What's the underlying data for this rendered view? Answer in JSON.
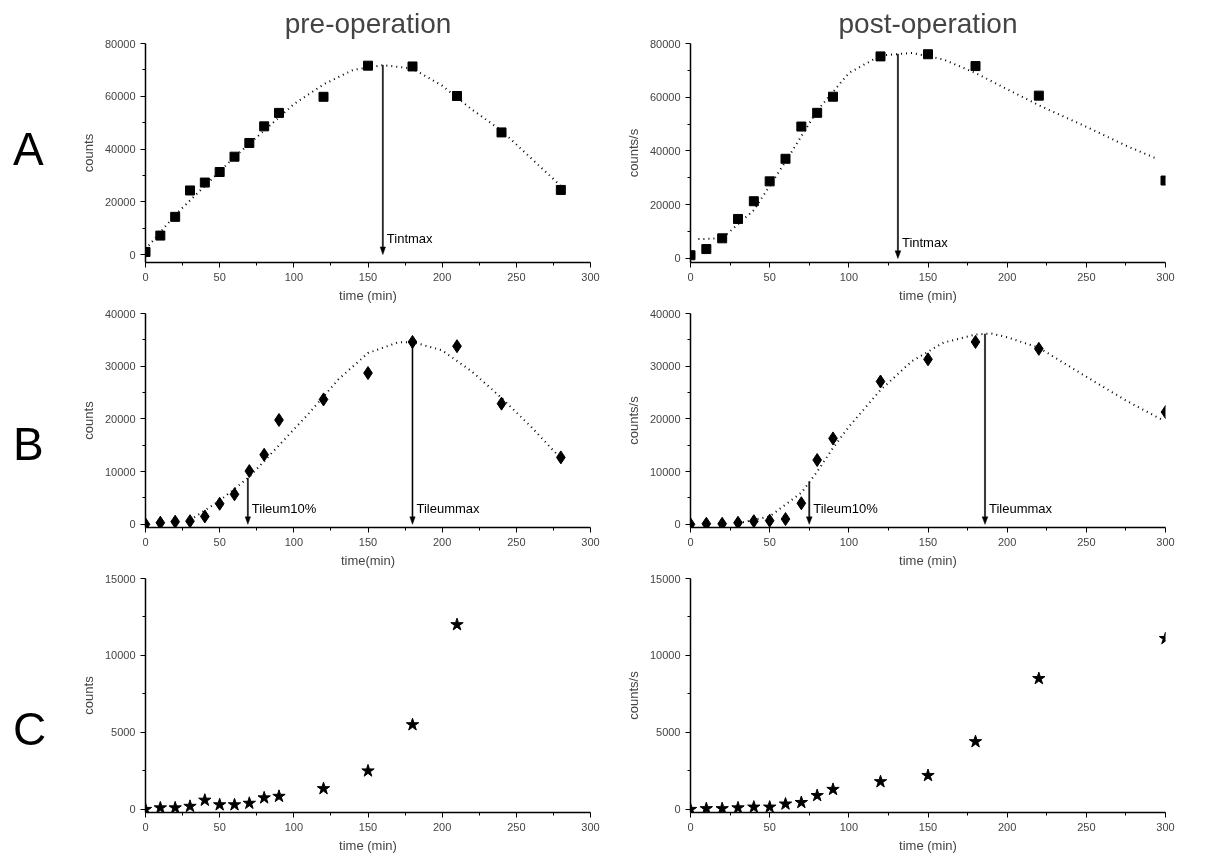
{
  "chart_data": [
    {
      "type": "scatter",
      "title": "pre-operation",
      "xlabel": "time (min)",
      "ylabel": "counts",
      "xlim": [
        0,
        300
      ],
      "ylim": [
        -3000,
        80000
      ],
      "xticks": [
        0,
        50,
        100,
        150,
        200,
        250,
        300
      ],
      "yticks": [
        0,
        20000,
        40000,
        60000,
        80000
      ],
      "annotations": [
        "A"
      ],
      "ref_lines": [
        {
          "axis": "x",
          "value": 160,
          "label": "Tintmax"
        }
      ],
      "series": [
        {
          "marker": "square",
          "color": "#000000",
          "x": [
            0,
            10,
            20,
            30,
            40,
            50,
            60,
            70,
            80,
            90,
            120,
            150,
            180,
            210,
            240,
            280
          ],
          "values": [
            1000,
            7200,
            14300,
            24300,
            27300,
            31300,
            37100,
            42300,
            48600,
            53700,
            59800,
            71600,
            71300,
            60100,
            46300,
            24500
          ]
        },
        {
          "type": "line",
          "line_style": "dotted",
          "color": "#000000",
          "x": [
            0,
            20,
            40,
            60,
            80,
            100,
            120,
            140,
            160,
            180,
            200,
            220,
            240,
            260,
            280
          ],
          "values": [
            2000,
            15000,
            26000,
            37000,
            47000,
            57000,
            64500,
            70000,
            71800,
            70500,
            64000,
            55000,
            47000,
            36500,
            26000
          ]
        }
      ]
    },
    {
      "type": "scatter",
      "title": "post-operation",
      "xlabel": "time (min)",
      "ylabel": "counts/s",
      "xlim": [
        0,
        300
      ],
      "ylim": [
        -1500,
        80000
      ],
      "xticks": [
        0,
        50,
        100,
        150,
        200,
        250,
        300
      ],
      "yticks": [
        0,
        20000,
        40000,
        60000,
        80000
      ],
      "ref_lines": [
        {
          "axis": "x",
          "value": 131,
          "label": "Tintmax"
        }
      ],
      "series": [
        {
          "marker": "square",
          "color": "#000000",
          "x": [
            0,
            10,
            20,
            30,
            40,
            50,
            60,
            70,
            80,
            90,
            120,
            150,
            180,
            220,
            300
          ],
          "values": [
            1200,
            3500,
            7500,
            14700,
            21300,
            28700,
            37100,
            49100,
            54200,
            60200,
            75200,
            76000,
            71600,
            60600,
            29000
          ]
        },
        {
          "type": "line",
          "line_style": "dotted",
          "color": "#000000",
          "x": [
            5,
            20,
            40,
            60,
            80,
            100,
            120,
            140,
            160,
            180,
            200,
            220,
            250,
            275,
            295
          ],
          "values": [
            7200,
            7500,
            18000,
            36000,
            55000,
            69000,
            75500,
            76500,
            74000,
            69000,
            63000,
            57000,
            49000,
            42000,
            37000
          ]
        }
      ]
    },
    {
      "type": "scatter",
      "xlabel": "time(min)",
      "ylabel": "counts",
      "xlim": [
        0,
        300
      ],
      "ylim": [
        -600,
        40000
      ],
      "xticks": [
        0,
        50,
        100,
        150,
        200,
        250,
        300
      ],
      "yticks": [
        0,
        10000,
        20000,
        30000,
        40000
      ],
      "annotations": [
        "B"
      ],
      "ref_lines": [
        {
          "axis": "x",
          "value": 69,
          "label": "Tileum10%"
        },
        {
          "axis": "x",
          "value": 180,
          "label": "Tileummax"
        }
      ],
      "series": [
        {
          "marker": "diamond",
          "color": "#000000",
          "x": [
            0,
            10,
            20,
            30,
            40,
            50,
            60,
            70,
            80,
            90,
            120,
            150,
            180,
            210,
            240,
            280
          ],
          "values": [
            0,
            300,
            500,
            600,
            1500,
            3900,
            5700,
            10100,
            13200,
            19800,
            23700,
            28700,
            34600,
            33800,
            22900,
            12700
          ]
        },
        {
          "type": "line",
          "line_style": "dotted",
          "color": "#000000",
          "x": [
            30,
            50,
            70,
            90,
            110,
            130,
            150,
            170,
            180,
            200,
            220,
            240,
            260,
            280
          ],
          "values": [
            800,
            4500,
            9000,
            15000,
            21000,
            27500,
            32500,
            34500,
            34600,
            33000,
            29000,
            24000,
            18500,
            12500
          ]
        }
      ]
    },
    {
      "type": "scatter",
      "xlabel": "time (min)",
      "ylabel": "counts/s",
      "xlim": [
        0,
        300
      ],
      "ylim": [
        -600,
        40000
      ],
      "xticks": [
        0,
        50,
        100,
        150,
        200,
        250,
        300
      ],
      "yticks": [
        0,
        10000,
        20000,
        30000,
        40000
      ],
      "ref_lines": [
        {
          "axis": "x",
          "value": 75,
          "label": "Tileum10%"
        },
        {
          "axis": "x",
          "value": 186,
          "label": "Tileummax"
        }
      ],
      "series": [
        {
          "marker": "diamond",
          "color": "#000000",
          "x": [
            0,
            10,
            20,
            30,
            40,
            50,
            60,
            70,
            80,
            90,
            120,
            150,
            180,
            220,
            300
          ],
          "values": [
            0,
            100,
            100,
            300,
            600,
            700,
            1000,
            4000,
            12200,
            16300,
            27100,
            31300,
            34600,
            33300,
            21300
          ]
        },
        {
          "type": "line",
          "line_style": "dotted",
          "color": "#000000",
          "x": [
            30,
            50,
            70,
            80,
            90,
            100,
            120,
            140,
            160,
            180,
            190,
            200,
            220,
            250,
            275,
            298
          ],
          "values": [
            200,
            1500,
            6000,
            10000,
            14500,
            18500,
            25500,
            31000,
            34500,
            36000,
            36200,
            35500,
            33500,
            28000,
            23500,
            19800
          ]
        }
      ]
    },
    {
      "type": "scatter",
      "xlabel": "time (min)",
      "ylabel": "counts",
      "xlim": [
        0,
        300
      ],
      "ylim": [
        -200,
        15000
      ],
      "xticks": [
        0,
        50,
        100,
        150,
        200,
        250,
        300
      ],
      "yticks": [
        0,
        5000,
        10000,
        15000
      ],
      "annotations": [
        "C"
      ],
      "series": [
        {
          "marker": "star",
          "color": "#000000",
          "x": [
            0,
            10,
            20,
            30,
            40,
            50,
            60,
            70,
            80,
            90,
            120,
            150,
            180,
            210
          ],
          "values": [
            0,
            100,
            100,
            200,
            600,
            300,
            300,
            400,
            750,
            850,
            1350,
            2500,
            5500,
            12000
          ]
        }
      ]
    },
    {
      "type": "scatter",
      "xlabel": "time (min)",
      "ylabel": "counts/s",
      "xlim": [
        0,
        300
      ],
      "ylim": [
        -200,
        15000
      ],
      "xticks": [
        0,
        50,
        100,
        150,
        200,
        250,
        300
      ],
      "yticks": [
        0,
        5000,
        10000,
        15000
      ],
      "series": [
        {
          "marker": "star",
          "color": "#000000",
          "x": [
            0,
            10,
            20,
            30,
            40,
            50,
            60,
            70,
            80,
            90,
            120,
            150,
            180,
            220,
            300
          ],
          "values": [
            0,
            50,
            50,
            100,
            150,
            150,
            350,
            450,
            900,
            1300,
            1800,
            2200,
            4400,
            8500,
            11100
          ]
        }
      ]
    }
  ]
}
